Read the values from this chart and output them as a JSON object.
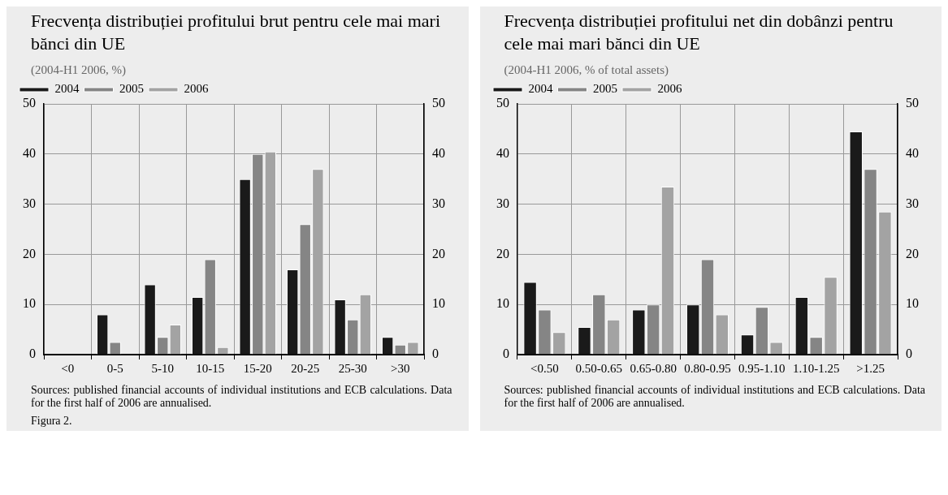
{
  "chart_data": [
    {
      "type": "bar",
      "title": "Frecvența distribuției profitului brut pentru cele mai mari bănci din UE",
      "subtitle": "(2004-H1 2006, %)",
      "categories": [
        "<0",
        "0-5",
        "5-10",
        "10-15",
        "15-20",
        "20-25",
        "25-30",
        ">30"
      ],
      "series": [
        {
          "name": "2004",
          "color": "#1a1a1a",
          "values": [
            0,
            8,
            14,
            11.5,
            35,
            17,
            11,
            3.5
          ]
        },
        {
          "name": "2005",
          "color": "#858585",
          "values": [
            0,
            2.5,
            3.5,
            19,
            40,
            26,
            7,
            2
          ]
        },
        {
          "name": "2006",
          "color": "#a3a3a3",
          "values": [
            0,
            0,
            6,
            1.5,
            40.5,
            37,
            12,
            2.5
          ]
        }
      ],
      "ylim": [
        0,
        50
      ],
      "yticks": [
        0,
        10,
        20,
        30,
        40,
        50
      ],
      "y2lim": [
        0,
        50
      ],
      "y2ticks": [
        0,
        10,
        20,
        30,
        40,
        50
      ],
      "grid": true,
      "legend": "top left",
      "annotations": [
        "Sources: published financial accounts of individual institutions and ECB calculations. Data for the first half of 2006 are annualised.",
        "Figura 2."
      ]
    },
    {
      "type": "bar",
      "title": "Frecvența distribuției profitului net din dobânzi pentru cele mai mari bănci din UE",
      "subtitle": "(2004-H1 2006, % of total assets)",
      "categories": [
        "<0.50",
        "0.50-0.65",
        "0.65-0.80",
        "0.80-0.95",
        "0.95-1.10",
        "1.10-1.25",
        ">1.25"
      ],
      "series": [
        {
          "name": "2004",
          "color": "#1a1a1a",
          "values": [
            14.5,
            5.5,
            9,
            10,
            4,
            11.5,
            44.5
          ]
        },
        {
          "name": "2005",
          "color": "#858585",
          "values": [
            9,
            12,
            10,
            19,
            9.5,
            3.5,
            37
          ]
        },
        {
          "name": "2006",
          "color": "#a3a3a3",
          "values": [
            4.5,
            7,
            33.5,
            8,
            2.5,
            15.5,
            28.5
          ]
        }
      ],
      "ylim": [
        0,
        50
      ],
      "yticks": [
        0,
        10,
        20,
        30,
        40,
        50
      ],
      "y2lim": [
        0,
        50
      ],
      "y2ticks": [
        0,
        10,
        20,
        30,
        40,
        50
      ],
      "grid": true,
      "legend": "top left",
      "annotations": [
        "Sources: published financial accounts of individual institutions and ECB calculations. Data for the first half of 2006 are annualised."
      ]
    }
  ]
}
